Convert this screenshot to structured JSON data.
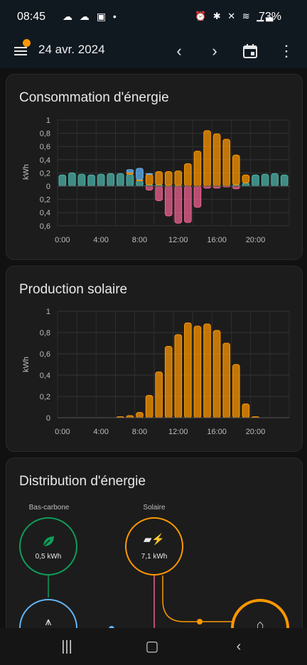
{
  "status_bar": {
    "time": "08:45",
    "battery": "73%"
  },
  "app_bar": {
    "date": "24 avr. 2024"
  },
  "energy_chart": {
    "title": "Consommation d'énergie",
    "chart_data": {
      "type": "bar",
      "ylabel": "kWh",
      "x_ticks": [
        "0:00",
        "4:00",
        "8:00",
        "12:00",
        "16:00",
        "20:00"
      ],
      "y_ticks_top": [
        "1",
        "0,8",
        "0,6",
        "0,4",
        "0,2",
        "0"
      ],
      "y_ticks_bottom": [
        "0,2",
        "0,4",
        "0,6"
      ],
      "hours": [
        0,
        1,
        2,
        3,
        4,
        5,
        6,
        7,
        8,
        9,
        10,
        11,
        12,
        13,
        14,
        15,
        16,
        17,
        18,
        19,
        20,
        21,
        22,
        23
      ],
      "series": [
        {
          "color": "#4db6ac",
          "values": [
            0.17,
            0.2,
            0.18,
            0.17,
            0.18,
            0.19,
            0.19,
            0.18,
            0.08,
            0.02,
            0.02,
            0.01,
            0.01,
            0,
            0,
            0,
            0,
            0,
            0.02,
            0.05,
            0.17,
            0.18,
            0.19,
            0.17
          ]
        },
        {
          "color": "#ff9800",
          "values": [
            0,
            0,
            0,
            0,
            0,
            0,
            0,
            0.03,
            0.02,
            0.16,
            0.2,
            0.21,
            0.22,
            0.34,
            0.53,
            0.84,
            0.79,
            0.71,
            0.45,
            0.12,
            0,
            0,
            0,
            0
          ]
        },
        {
          "color": "#64b5f6",
          "values": [
            0,
            0,
            0,
            0,
            0,
            0,
            0,
            0.04,
            0.17,
            0.01,
            0,
            0,
            0,
            0,
            0,
            0,
            0,
            0,
            0,
            0,
            0,
            0,
            0,
            0
          ]
        },
        {
          "color": "#f06292",
          "values": [
            0,
            0,
            0,
            0,
            0,
            0,
            0,
            0,
            0,
            -0.06,
            -0.22,
            -0.45,
            -0.56,
            -0.55,
            -0.32,
            -0.03,
            -0.03,
            -0.01,
            -0.04,
            0,
            0,
            0,
            0,
            0
          ]
        }
      ]
    }
  },
  "solar_chart": {
    "title": "Production solaire",
    "chart_data": {
      "type": "bar",
      "ylabel": "kWh",
      "x_ticks": [
        "0:00",
        "4:00",
        "8:00",
        "12:00",
        "16:00",
        "20:00"
      ],
      "y_ticks": [
        "1",
        "0,8",
        "0,6",
        "0,4",
        "0,2",
        "0"
      ],
      "ylim": [
        0,
        1
      ],
      "hours": [
        0,
        1,
        2,
        3,
        4,
        5,
        6,
        7,
        8,
        9,
        10,
        11,
        12,
        13,
        14,
        15,
        16,
        17,
        18,
        19,
        20,
        21,
        22,
        23
      ],
      "series": [
        {
          "color": "#ff9800",
          "values": [
            0,
            0,
            0,
            0,
            0,
            0,
            0.01,
            0.02,
            0.05,
            0.21,
            0.43,
            0.67,
            0.78,
            0.89,
            0.86,
            0.88,
            0.82,
            0.7,
            0.5,
            0.13,
            0.01,
            0,
            0,
            0
          ]
        }
      ]
    }
  },
  "distribution": {
    "title": "Distribution d'énergie",
    "low_carbon": {
      "label": "Bas-carbone",
      "value": "0,5 kWh"
    },
    "solar": {
      "label": "Solaire",
      "value": "7,1 kWh"
    }
  },
  "colors": {
    "orange": "#ff9800",
    "teal": "#4db6ac",
    "blue": "#64b5f6",
    "pink": "#f06292",
    "green": "#0f9d58"
  }
}
